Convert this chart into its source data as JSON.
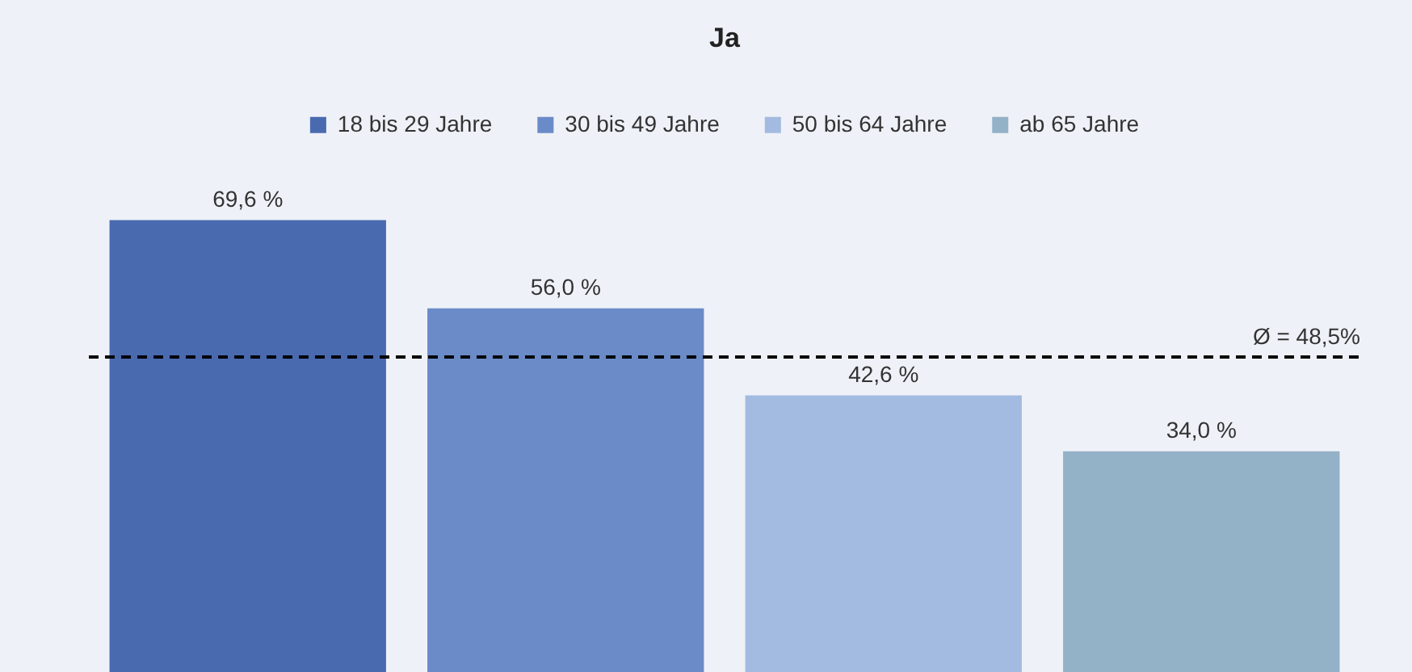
{
  "chart_data": {
    "type": "bar",
    "title": "Ja",
    "categories": [
      null
    ],
    "legend": "top",
    "series": [
      {
        "name": "18 bis 29 Jahre",
        "color": "#4a6ab0",
        "values": [
          69.6
        ],
        "value_labels": [
          "69,6 %"
        ]
      },
      {
        "name": "30 bis 49 Jahre",
        "color": "#6a8bc8",
        "values": [
          56.0
        ],
        "value_labels": [
          "56,0 %"
        ]
      },
      {
        "name": "50 bis 64 Jahre",
        "color": "#a3bbe0",
        "values": [
          42.6
        ],
        "value_labels": [
          "42,6 %"
        ]
      },
      {
        "name": "ab 65 Jahre",
        "color": "#93b1c7",
        "values": [
          34.0
        ],
        "value_labels": [
          "34,0 %"
        ]
      }
    ],
    "ref_lines": [
      {
        "axis": "y",
        "value": 48.5,
        "label": "Ø = 48,5%",
        "color": "#000000",
        "line_style": "dashed"
      }
    ]
  }
}
